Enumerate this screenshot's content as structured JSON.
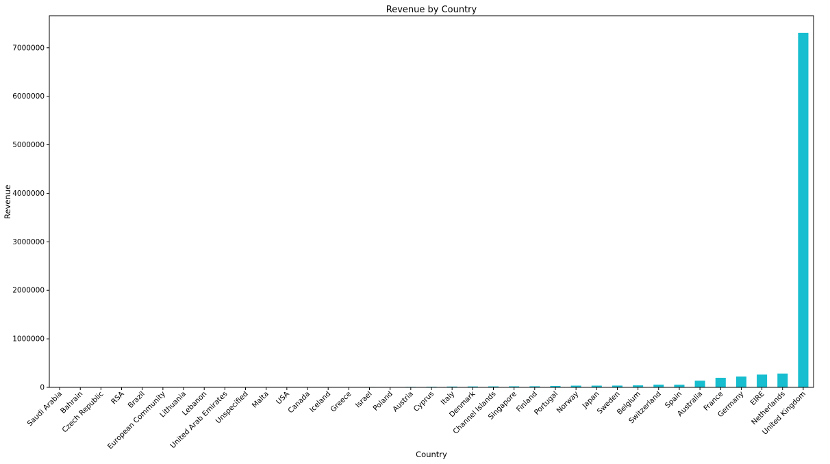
{
  "chart_data": {
    "type": "bar",
    "title": "Revenue by Country",
    "xlabel": "Country",
    "ylabel": "Revenue",
    "ylim": [
      0,
      7660000
    ],
    "yticks": [
      0,
      1000000,
      2000000,
      3000000,
      4000000,
      5000000,
      6000000,
      7000000
    ],
    "ytick_labels": [
      "0",
      "1000000",
      "2000000",
      "3000000",
      "4000000",
      "5000000",
      "6000000",
      "7000000"
    ],
    "grid": false,
    "bar_color": "#17becf",
    "categories": [
      "Saudi Arabia",
      "Bahrain",
      "Czech Republic",
      "RSA",
      "Brazil",
      "European Community",
      "Lithuania",
      "Lebanon",
      "United Arab Emirates",
      "Unspecified",
      "Malta",
      "USA",
      "Canada",
      "Iceland",
      "Greece",
      "Israel",
      "Poland",
      "Austria",
      "Cyprus",
      "Italy",
      "Denmark",
      "Channel Islands",
      "Singapore",
      "Finland",
      "Portugal",
      "Norway",
      "Japan",
      "Sweden",
      "Belgium",
      "Switzerland",
      "Spain",
      "Australia",
      "France",
      "Germany",
      "EIRE",
      "Netherlands",
      "United Kingdom"
    ],
    "values": [
      131,
      548,
      708,
      1002,
      1144,
      1291,
      1661,
      1694,
      1902,
      2667,
      2505,
      1730,
      3666,
      4310,
      4710,
      7908,
      7213,
      10154,
      12946,
      16891,
      18768,
      20086,
      21279,
      22327,
      29367,
      35163,
      35340,
      36596,
      40911,
      56385,
      54775,
      137077,
      197404,
      221698,
      263277,
      284662,
      7308391
    ]
  }
}
